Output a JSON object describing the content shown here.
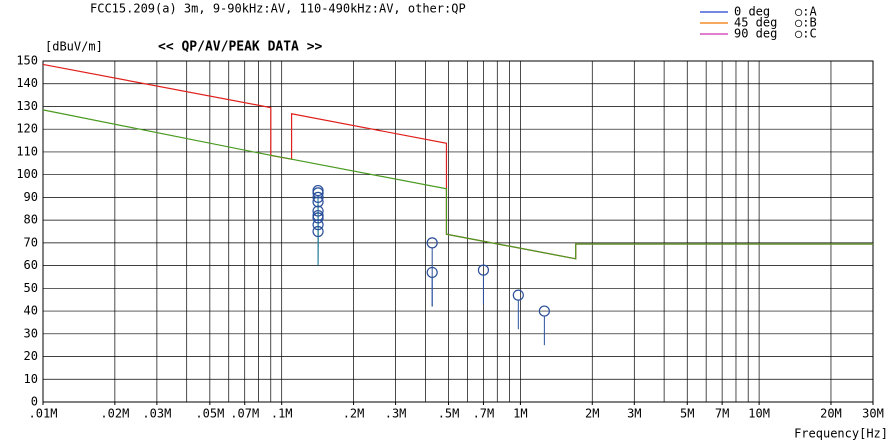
{
  "chart_data": {
    "type": "line",
    "header": "FCC15.209(a) 3m, 9-90kHz:AV, 110-490kHz:AV, other:QP",
    "title": "<< QP/AV/PEAK DATA >>",
    "y_label": "[dBuV/m]",
    "x_label": "Frequency[Hz]",
    "log_x": true,
    "grid": true,
    "xlim": [
      0.01,
      30
    ],
    "ylim": [
      0,
      150
    ],
    "yticks": [
      0,
      10,
      20,
      30,
      40,
      50,
      60,
      70,
      80,
      90,
      100,
      110,
      120,
      130,
      140,
      150
    ],
    "xticks": [
      {
        "value": 0.01,
        "label": ".01M"
      },
      {
        "value": 0.02,
        "label": ".02M"
      },
      {
        "value": 0.03,
        "label": ".03M"
      },
      {
        "value": 0.05,
        "label": ".05M"
      },
      {
        "value": 0.07,
        "label": ".07M"
      },
      {
        "value": 0.1,
        "label": ".1M"
      },
      {
        "value": 0.2,
        "label": ".2M"
      },
      {
        "value": 0.3,
        "label": ".3M"
      },
      {
        "value": 0.5,
        "label": ".5M"
      },
      {
        "value": 0.7,
        "label": ".7M"
      },
      {
        "value": 1,
        "label": "1M"
      },
      {
        "value": 2,
        "label": "2M"
      },
      {
        "value": 3,
        "label": "3M"
      },
      {
        "value": 5,
        "label": "5M"
      },
      {
        "value": 7,
        "label": "7M"
      },
      {
        "value": 10,
        "label": "10M"
      },
      {
        "value": 20,
        "label": "20M"
      },
      {
        "value": 30,
        "label": "30M"
      }
    ],
    "xgrid": [
      0.02,
      0.03,
      0.04,
      0.05,
      0.06,
      0.07,
      0.08,
      0.09,
      0.1,
      0.2,
      0.3,
      0.4,
      0.5,
      0.6,
      0.7,
      0.8,
      0.9,
      1,
      2,
      3,
      4,
      5,
      6,
      7,
      8,
      9,
      10,
      20
    ],
    "series": [
      {
        "color": "#e0201c",
        "x": [
          0.01,
          0.09,
          0.09,
          0.11,
          0.11,
          0.49,
          0.49,
          1.705,
          1.705,
          30
        ],
        "values": [
          148.5,
          129.5,
          108.5,
          106.8,
          126.8,
          113.8,
          73.8,
          63,
          69.5,
          69.5
        ]
      },
      {
        "color": "#4a9a20",
        "x": [
          0.01,
          0.09,
          0.11,
          0.49,
          0.49,
          1.705,
          1.705,
          30
        ],
        "values": [
          128.5,
          108.5,
          106.8,
          93.8,
          73.8,
          63,
          69.5,
          69.5
        ]
      }
    ],
    "points": {
      "color": "#2a4f9a",
      "stem_color": "#2a7f9a",
      "x": [
        0.142,
        0.142,
        0.142,
        0.142,
        0.142,
        0.142,
        0.142,
        0.142,
        0.142,
        0.427,
        0.427,
        0.7,
        0.98,
        1.26
      ],
      "values": [
        93,
        92,
        90,
        88,
        84,
        82,
        81,
        78,
        75,
        70,
        57,
        58,
        47,
        40
      ],
      "low": [
        68,
        68,
        66,
        64,
        62,
        62,
        60,
        60,
        60,
        42,
        42,
        43,
        32,
        25
      ]
    },
    "legend": [
      {
        "name": "0 deg",
        "color": "#2040d0",
        "marker": "○:A",
        "marker_color": "#2a4f9a"
      },
      {
        "name": "45 deg",
        "color": "#f07800",
        "marker": "○:B",
        "marker_color": "#3a9a30"
      },
      {
        "name": "90 deg",
        "color": "#d030b0",
        "marker": "○:C",
        "marker_color": "#2a8a9a"
      }
    ]
  }
}
